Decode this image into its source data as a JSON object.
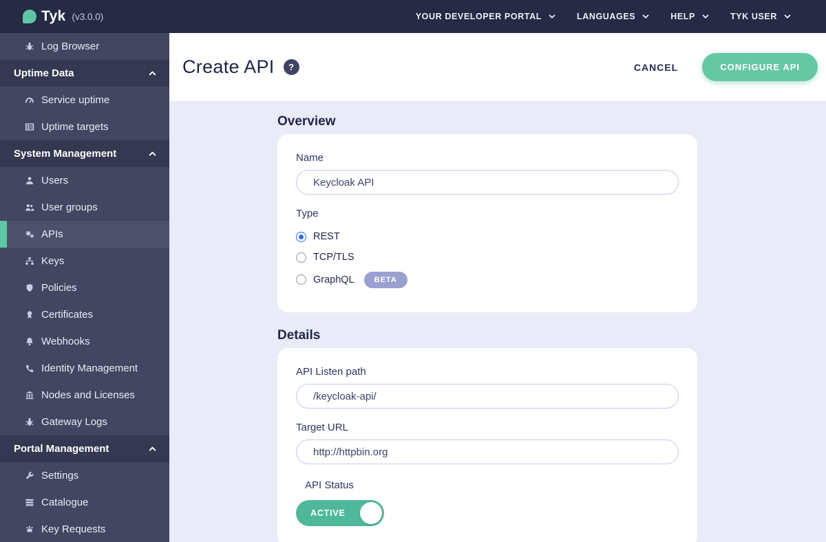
{
  "topbar": {
    "logo_text": "Tyk",
    "version": "(v3.0.0)",
    "menu": [
      {
        "label": "YOUR DEVELOPER PORTAL"
      },
      {
        "label": "LANGUAGES"
      },
      {
        "label": "HELP"
      },
      {
        "label": "TYK USER"
      }
    ]
  },
  "sidebar": {
    "items": [
      {
        "type": "item",
        "icon": "bug-icon",
        "label": "Log Browser"
      },
      {
        "type": "header",
        "label": "Uptime Data",
        "expanded": true
      },
      {
        "type": "item",
        "icon": "gauge-icon",
        "label": "Service uptime"
      },
      {
        "type": "item",
        "icon": "table-icon",
        "label": "Uptime targets"
      },
      {
        "type": "header",
        "label": "System Management",
        "expanded": true
      },
      {
        "type": "item",
        "icon": "user-icon",
        "label": "Users"
      },
      {
        "type": "item",
        "icon": "users-icon",
        "label": "User groups"
      },
      {
        "type": "item",
        "icon": "gears-icon",
        "label": "APIs",
        "selected": true
      },
      {
        "type": "item",
        "icon": "sitemap-icon",
        "label": "Keys"
      },
      {
        "type": "item",
        "icon": "shield-icon",
        "label": "Policies"
      },
      {
        "type": "item",
        "icon": "certificate-icon",
        "label": "Certificates"
      },
      {
        "type": "item",
        "icon": "bell-icon",
        "label": "Webhooks"
      },
      {
        "type": "item",
        "icon": "phone-icon",
        "label": "Identity Management"
      },
      {
        "type": "item",
        "icon": "bank-icon",
        "label": "Nodes and Licenses"
      },
      {
        "type": "item",
        "icon": "bug-icon",
        "label": "Gateway Logs"
      },
      {
        "type": "header",
        "label": "Portal Management",
        "expanded": true
      },
      {
        "type": "item",
        "icon": "wrench-icon",
        "label": "Settings"
      },
      {
        "type": "item",
        "icon": "list-icon",
        "label": "Catalogue"
      },
      {
        "type": "item",
        "icon": "paw-icon",
        "label": "Key Requests"
      }
    ]
  },
  "header": {
    "title": "Create API",
    "help_icon": "?",
    "cancel_label": "CANCEL",
    "configure_label": "CONFIGURE API"
  },
  "overview": {
    "heading": "Overview",
    "name_label": "Name",
    "name_value": "Keycloak API",
    "type_label": "Type",
    "type_options": [
      {
        "label": "REST",
        "selected": true
      },
      {
        "label": "TCP/TLS",
        "selected": false
      },
      {
        "label": "GraphQL",
        "selected": false,
        "badge": "BETA"
      }
    ]
  },
  "details": {
    "heading": "Details",
    "listen_path_label": "API Listen path",
    "listen_path_value": "/keycloak-api/",
    "target_url_label": "Target URL",
    "target_url_value": "http://httpbin.org",
    "api_status_label": "API Status",
    "api_status_value": "ACTIVE",
    "api_status_on": true
  },
  "colors": {
    "accent_teal": "#5FC6A4",
    "topbar_bg": "#262A44",
    "sidebar_bg": "#424660",
    "sidebar_section_bg": "#343850",
    "sidebar_selected_bg": "#4D516C",
    "radio_selected_blue": "#2F6BE0",
    "beta_badge_purple": "#9AA0CF",
    "toggle_active_green": "#4FB89B",
    "content_bg": "#EAEBF9"
  }
}
